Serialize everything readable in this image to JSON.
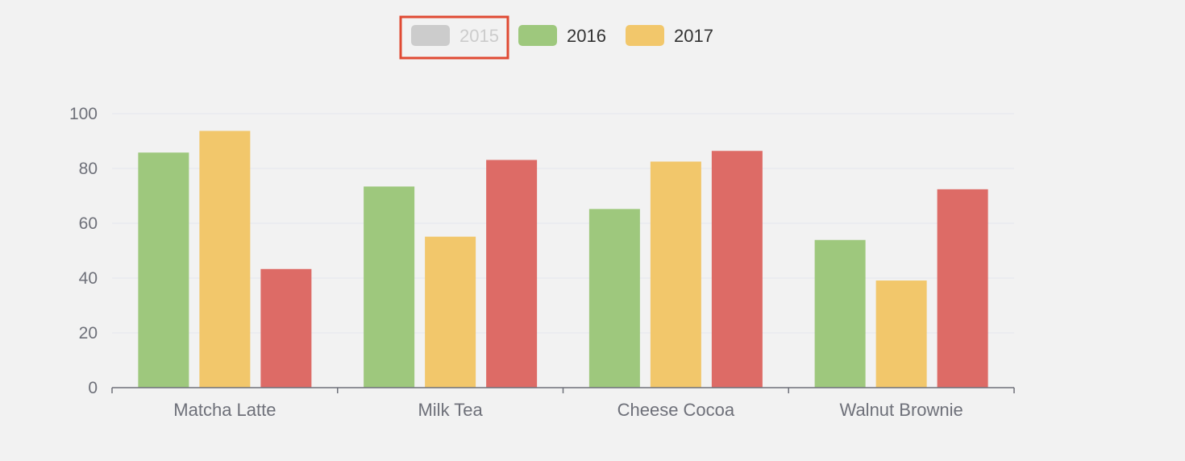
{
  "chart_data": {
    "type": "bar",
    "categories": [
      "Matcha Latte",
      "Milk Tea",
      "Cheese Cocoa",
      "Walnut Brownie"
    ],
    "series": [
      {
        "name": "2015",
        "values": [
          43.3,
          83.1,
          86.4,
          72.4
        ],
        "color": "#dd6b66",
        "hidden": true
      },
      {
        "name": "2016",
        "values": [
          85.8,
          73.4,
          65.2,
          53.9
        ],
        "color": "#9ec87d",
        "hidden": false
      },
      {
        "name": "2017",
        "values": [
          93.7,
          55.1,
          82.5,
          39.1
        ],
        "color": "#f2c76b",
        "hidden": false
      }
    ],
    "bar_order": [
      "2016",
      "2017",
      "2015"
    ],
    "y_ticks": [
      "0",
      "20",
      "40",
      "60",
      "80",
      "100"
    ],
    "ylim": [
      0,
      100
    ],
    "grid": true,
    "legend_position": "top-center",
    "legend_disabled_color": "#cccccc",
    "highlight_box_color": "#e04a33",
    "highlighted_legend_item": "2015"
  }
}
